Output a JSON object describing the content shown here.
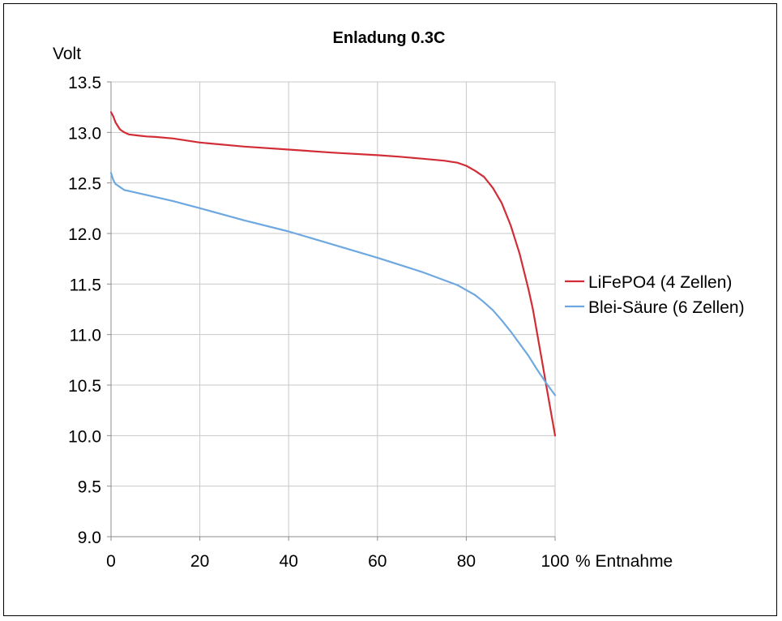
{
  "chart_data": {
    "type": "line",
    "title": "Enladung 0.3C",
    "ylabel": "Volt",
    "xlabel": "% Entnahme",
    "xlim": [
      0,
      100
    ],
    "ylim": [
      9.0,
      13.5
    ],
    "xticks": [
      "0",
      "20",
      "40",
      "60",
      "80",
      "100"
    ],
    "yticks": [
      "9.0",
      "9.5",
      "10.0",
      "10.5",
      "11.0",
      "11.5",
      "12.0",
      "12.5",
      "13.0",
      "13.5"
    ],
    "grid": true,
    "legend_position": "right",
    "series": [
      {
        "name": "LiFePO4 (4 Zellen)",
        "color": "#d22d36",
        "x": [
          0,
          0.5,
          1,
          2,
          3,
          4,
          6,
          8,
          10,
          14,
          20,
          30,
          40,
          50,
          60,
          65,
          70,
          75,
          78,
          80,
          82,
          84,
          86,
          88,
          90,
          92,
          94,
          95,
          96,
          97,
          98,
          99,
          100
        ],
        "y": [
          13.2,
          13.16,
          13.1,
          13.03,
          13.0,
          12.98,
          12.97,
          12.96,
          12.955,
          12.94,
          12.9,
          12.86,
          12.83,
          12.8,
          12.775,
          12.76,
          12.74,
          12.72,
          12.7,
          12.67,
          12.62,
          12.56,
          12.45,
          12.3,
          12.08,
          11.8,
          11.45,
          11.25,
          11.0,
          10.75,
          10.5,
          10.25,
          10.0
        ]
      },
      {
        "name": "Blei-Säure (6 Zellen)",
        "color": "#6ea8e0",
        "x": [
          0,
          0.5,
          1,
          2,
          3,
          4,
          6,
          10,
          14,
          20,
          30,
          40,
          50,
          60,
          70,
          78,
          80,
          82,
          84,
          86,
          88,
          90,
          92,
          94,
          96,
          98,
          100
        ],
        "y": [
          12.6,
          12.53,
          12.49,
          12.46,
          12.43,
          12.42,
          12.4,
          12.36,
          12.32,
          12.25,
          12.13,
          12.02,
          11.89,
          11.76,
          11.62,
          11.49,
          11.44,
          11.39,
          11.32,
          11.24,
          11.14,
          11.03,
          10.91,
          10.79,
          10.65,
          10.52,
          10.4
        ]
      }
    ]
  }
}
